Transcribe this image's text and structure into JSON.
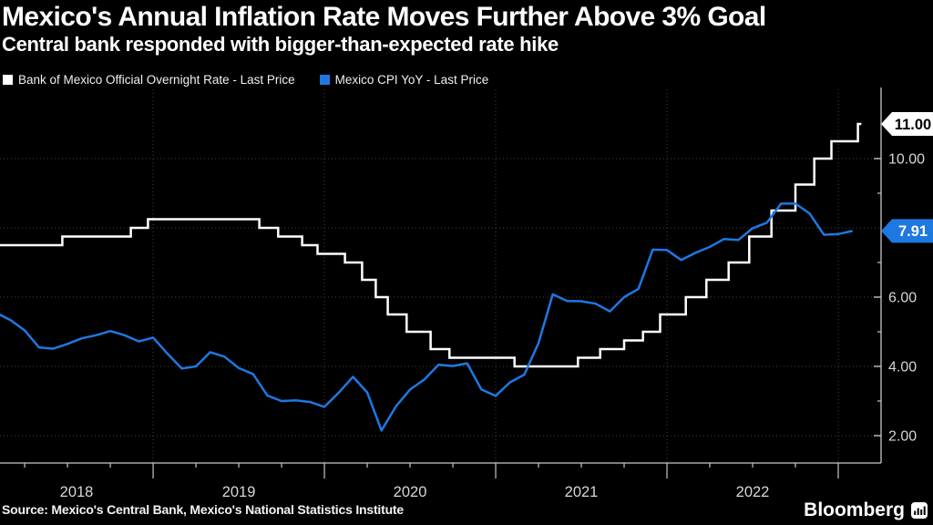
{
  "header": {
    "title": "Mexico's Annual Inflation Rate Moves Further Above 3% Goal",
    "subtitle": "Central bank responded with bigger-than-expected rate hike"
  },
  "legend": {
    "items": [
      {
        "label": "Bank of Mexico Official Overnight Rate - Last Price",
        "color": "#ffffff"
      },
      {
        "label": "Mexico CPI YoY - Last Price",
        "color": "#1e78e2"
      }
    ]
  },
  "chart_data": {
    "type": "line",
    "title": "Mexico's Annual Inflation Rate Moves Further Above 3% Goal",
    "background": "#000000",
    "grid": "dotted",
    "grid_color": "#46443a",
    "axis_color": "#c8c8c8",
    "tick_label_color": "#d7d7d7",
    "legend_position": "top-left",
    "xlim": [
      2018.106,
      2023.25
    ],
    "ylim": [
      1.21,
      12.0
    ],
    "x_axis": {
      "year_labels": [
        {
          "text": "2018",
          "year": 2018
        },
        {
          "text": "2019",
          "year": 2019
        },
        {
          "text": "2020",
          "year": 2020
        },
        {
          "text": "2021",
          "year": 2021
        },
        {
          "text": "2022",
          "year": 2022
        }
      ],
      "major_ticks": [
        2019,
        2020,
        2021,
        2022,
        2023
      ],
      "minor_tick_interval_years": 0.25
    },
    "y_axis": {
      "side": "right",
      "labeled_ticks": [
        {
          "value": 2,
          "label": "2.00"
        },
        {
          "value": 4,
          "label": "4.00"
        },
        {
          "value": 6,
          "label": "6.00"
        },
        {
          "value": 10,
          "label": "10.00"
        }
      ],
      "grid_values": [
        2,
        4,
        6,
        8,
        10
      ],
      "minor_ticks": [
        3,
        5,
        7,
        9
      ]
    },
    "series": [
      {
        "name": "Bank of Mexico Official Overnight Rate - Last Price",
        "color": "#ffffff",
        "line_style": "step",
        "points": [
          [
            2018.106,
            7.5
          ],
          [
            2018.47,
            7.75
          ],
          [
            2018.87,
            8.0
          ],
          [
            2018.97,
            8.25
          ],
          [
            2019.62,
            8.0
          ],
          [
            2019.73,
            7.75
          ],
          [
            2019.87,
            7.5
          ],
          [
            2019.96,
            7.25
          ],
          [
            2020.12,
            7.0
          ],
          [
            2020.22,
            6.5
          ],
          [
            2020.3,
            6.0
          ],
          [
            2020.37,
            5.5
          ],
          [
            2020.48,
            5.0
          ],
          [
            2020.62,
            4.5
          ],
          [
            2020.73,
            4.25
          ],
          [
            2021.11,
            4.0
          ],
          [
            2021.48,
            4.25
          ],
          [
            2021.61,
            4.5
          ],
          [
            2021.75,
            4.75
          ],
          [
            2021.86,
            5.0
          ],
          [
            2021.96,
            5.5
          ],
          [
            2022.11,
            6.0
          ],
          [
            2022.23,
            6.5
          ],
          [
            2022.36,
            7.0
          ],
          [
            2022.48,
            7.75
          ],
          [
            2022.61,
            8.5
          ],
          [
            2022.75,
            9.25
          ],
          [
            2022.86,
            10.0
          ],
          [
            2022.96,
            10.5
          ],
          [
            2023.115,
            11.0
          ],
          [
            2023.135,
            11.0
          ]
        ],
        "last_value": 11.0
      },
      {
        "name": "Mexico CPI YoY - Last Price",
        "color": "#1e78e2",
        "line_style": "linear",
        "frequency": "monthly",
        "start": "2018-01",
        "values": [
          5.55,
          5.34,
          5.04,
          4.55,
          4.51,
          4.65,
          4.81,
          4.9,
          5.02,
          4.9,
          4.72,
          4.83,
          4.37,
          3.94,
          4.0,
          4.41,
          4.28,
          3.95,
          3.78,
          3.16,
          3.0,
          3.02,
          2.97,
          2.83,
          3.24,
          3.7,
          3.25,
          2.15,
          2.84,
          3.33,
          3.62,
          4.05,
          4.01,
          4.09,
          3.33,
          3.15,
          3.54,
          3.76,
          4.67,
          6.08,
          5.89,
          5.88,
          5.81,
          5.59,
          6.0,
          6.24,
          7.37,
          7.36,
          7.07,
          7.28,
          7.45,
          7.68,
          7.65,
          7.99,
          8.15,
          8.7,
          8.7,
          8.41,
          7.8,
          7.82,
          7.91
        ],
        "last_value": 7.91
      }
    ],
    "last_price_badges": [
      {
        "label": "11.00",
        "value": 11.0,
        "background": "#ffffff",
        "text_color": "#000000"
      },
      {
        "label": "7.91",
        "value": 7.91,
        "background": "#1e78e2",
        "text_color": "#ffffff"
      }
    ]
  },
  "footer": {
    "source": "Source: Mexico's Central Bank, Mexico's National Statistics Institute",
    "brand": "Bloomberg"
  }
}
